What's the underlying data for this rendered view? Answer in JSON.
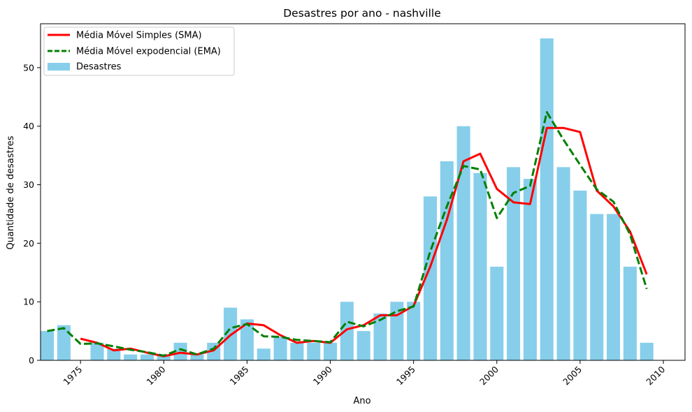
{
  "chart_data": {
    "type": "bar",
    "title": "Desastres por ano - nashville",
    "xlabel": "Ano",
    "ylabel": "Quantidade de desastres",
    "xlim": [
      1972.6,
      2011.3
    ],
    "ylim": [
      0,
      57.5
    ],
    "x_ticks": [
      1975,
      1980,
      1985,
      1990,
      1995,
      2000,
      2005,
      2010
    ],
    "y_ticks": [
      0,
      10,
      20,
      30,
      40,
      50
    ],
    "grid": false,
    "legend_position": "top-left",
    "colors": {
      "bars": "#87ceeb",
      "sma": "#ff0000",
      "ema": "#008000"
    },
    "x": [
      1973,
      1974,
      1975,
      1976,
      1977,
      1978,
      1979,
      1980,
      1981,
      1982,
      1983,
      1984,
      1985,
      1986,
      1987,
      1988,
      1989,
      1990,
      1991,
      1992,
      1993,
      1994,
      1995,
      1996,
      1997,
      1998,
      1999,
      2000,
      2001,
      2002,
      2003,
      2004,
      2005,
      2006,
      2007,
      2008,
      2009
    ],
    "series": [
      {
        "name": "Desastres",
        "kind": "bar",
        "values": [
          5,
          6,
          0,
          3,
          2,
          1,
          1,
          1,
          3,
          1,
          3,
          9,
          7,
          2,
          4,
          3,
          3,
          3,
          10,
          5,
          8,
          10,
          10,
          28,
          34,
          40,
          32,
          16,
          33,
          31,
          55,
          33,
          29,
          25,
          25,
          16,
          3
        ]
      },
      {
        "name": "Média Móvel Simples (SMA)",
        "kind": "line",
        "style": "solid",
        "x": [
          1975,
          1976,
          1977,
          1978,
          1979,
          1980,
          1981,
          1982,
          1983,
          1984,
          1985,
          1986,
          1987,
          1988,
          1989,
          1990,
          1991,
          1992,
          1993,
          1994,
          1995,
          1996,
          1997,
          1998,
          1999,
          2000,
          2001,
          2002,
          2003,
          2004,
          2005,
          2006,
          2007,
          2008,
          2009
        ],
        "values": [
          3.7,
          3.0,
          1.7,
          2.0,
          1.3,
          0.7,
          1.3,
          1.0,
          1.7,
          4.3,
          6.3,
          6.0,
          4.3,
          3.0,
          3.3,
          3.0,
          5.3,
          6.0,
          7.7,
          7.7,
          9.3,
          16.0,
          24.0,
          34.0,
          35.3,
          29.3,
          27.0,
          26.7,
          39.7,
          39.7,
          39.0,
          29.0,
          26.3,
          22.0,
          14.7
        ]
      },
      {
        "name": "Média Móvel expodencial (EMA)",
        "kind": "line",
        "style": "dashed",
        "x": [
          1973,
          1974,
          1975,
          1976,
          1977,
          1978,
          1979,
          1980,
          1981,
          1982,
          1983,
          1984,
          1985,
          1986,
          1987,
          1988,
          1989,
          1990,
          1991,
          1992,
          1993,
          1994,
          1995,
          1996,
          1997,
          1998,
          1999,
          2000,
          2001,
          2002,
          2003,
          2004,
          2005,
          2006,
          2007,
          2008,
          2009
        ],
        "values": [
          5.0,
          5.5,
          2.8,
          2.9,
          2.4,
          1.8,
          1.4,
          0.8,
          1.9,
          1.0,
          2.0,
          5.5,
          6.2,
          4.1,
          4.0,
          3.5,
          3.3,
          3.1,
          6.6,
          5.8,
          6.9,
          8.4,
          9.2,
          18.6,
          26.3,
          33.2,
          32.6,
          24.3,
          28.6,
          29.8,
          42.4,
          37.7,
          33.4,
          29.2,
          27.1,
          21.5,
          12.2
        ]
      }
    ]
  }
}
